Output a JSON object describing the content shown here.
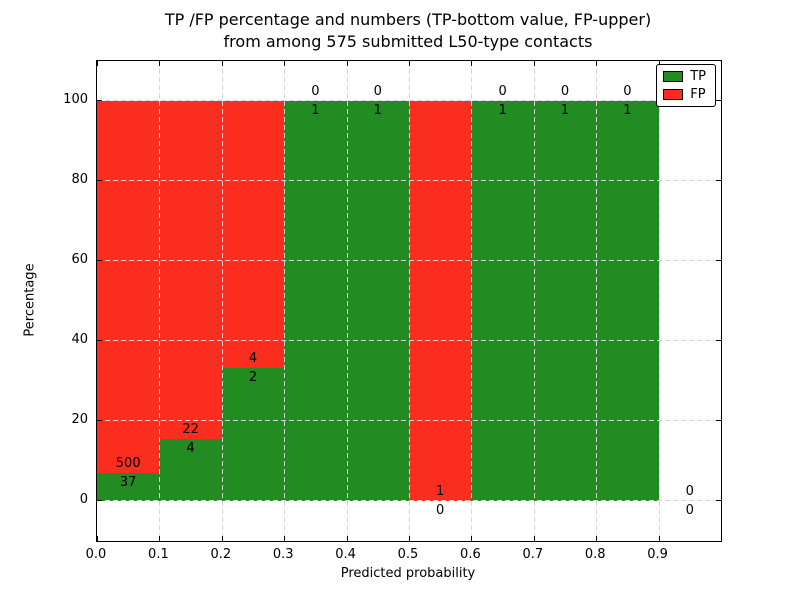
{
  "chart_data": {
    "type": "bar",
    "stacked": true,
    "title_lines": [
      "TP /FP percentage and numbers (TP-bottom value, FP-upper)",
      "from among 575 submitted L50-type contacts"
    ],
    "xlabel": "Predicted probability",
    "ylabel": "Percentage",
    "xlim": [
      0.0,
      1.0
    ],
    "ylim": [
      -10,
      110
    ],
    "grid": true,
    "grid_style": "dashed",
    "legend_position": "upper right",
    "legend": [
      {
        "label": "TP",
        "color": "#228b22"
      },
      {
        "label": "FP",
        "color": "#fb2d1f"
      }
    ],
    "xticks": [
      {
        "v": 0.0,
        "label": "0.0"
      },
      {
        "v": 0.1,
        "label": "0.1"
      },
      {
        "v": 0.2,
        "label": "0.2"
      },
      {
        "v": 0.3,
        "label": "0.3"
      },
      {
        "v": 0.4,
        "label": "0.4"
      },
      {
        "v": 0.5,
        "label": "0.5"
      },
      {
        "v": 0.6,
        "label": "0.6"
      },
      {
        "v": 0.7,
        "label": "0.7"
      },
      {
        "v": 0.8,
        "label": "0.8"
      },
      {
        "v": 0.9,
        "label": "0.9"
      }
    ],
    "yticks": [
      {
        "v": 0,
        "label": "0"
      },
      {
        "v": 20,
        "label": "20"
      },
      {
        "v": 40,
        "label": "40"
      },
      {
        "v": 60,
        "label": "60"
      },
      {
        "v": 80,
        "label": "80"
      },
      {
        "v": 100,
        "label": "100"
      }
    ],
    "bins": [
      {
        "x0": 0.0,
        "x1": 0.1,
        "tp": 37,
        "fp": 500
      },
      {
        "x0": 0.1,
        "x1": 0.2,
        "tp": 4,
        "fp": 22
      },
      {
        "x0": 0.2,
        "x1": 0.3,
        "tp": 2,
        "fp": 4
      },
      {
        "x0": 0.3,
        "x1": 0.4,
        "tp": 1,
        "fp": 0
      },
      {
        "x0": 0.4,
        "x1": 0.5,
        "tp": 1,
        "fp": 0
      },
      {
        "x0": 0.5,
        "x1": 0.6,
        "tp": 0,
        "fp": 1
      },
      {
        "x0": 0.6,
        "x1": 0.7,
        "tp": 1,
        "fp": 0
      },
      {
        "x0": 0.7,
        "x1": 0.8,
        "tp": 1,
        "fp": 0
      },
      {
        "x0": 0.8,
        "x1": 0.9,
        "tp": 1,
        "fp": 0
      },
      {
        "x0": 0.9,
        "x1": 1.0,
        "tp": 0,
        "fp": 0
      }
    ]
  }
}
